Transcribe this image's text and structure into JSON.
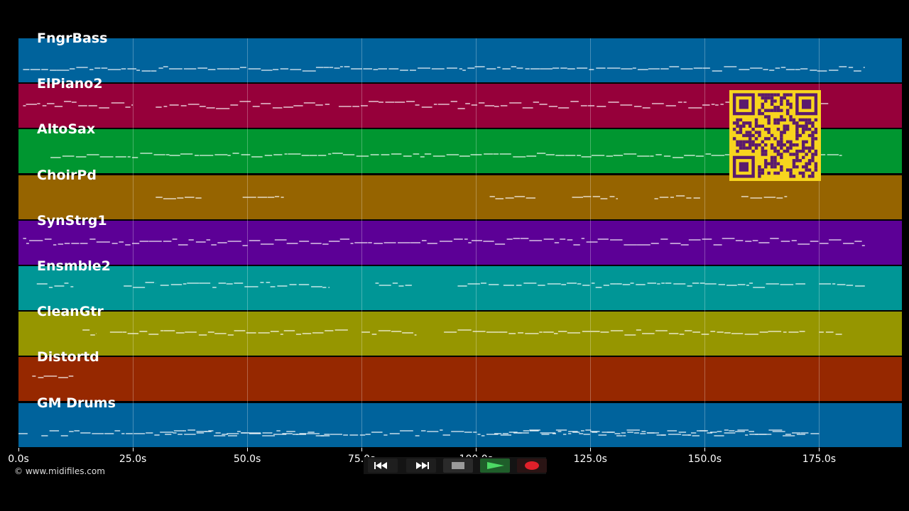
{
  "tracks": [
    {
      "name": "FngrBass",
      "color": "#00639c"
    },
    {
      "name": "ElPiano2",
      "color": "#96003a"
    },
    {
      "name": "AltoSax",
      "color": "#009630"
    },
    {
      "name": "ChoirPd",
      "color": "#966400"
    },
    {
      "name": "SynStrg1",
      "color": "#5c0096"
    },
    {
      "name": "Ensmble2",
      "color": "#009696"
    },
    {
      "name": "CleanGtr",
      "color": "#969600"
    },
    {
      "name": "Distortd",
      "color": "#962800"
    },
    {
      "name": "GM Drums",
      "color": "#00639c"
    }
  ],
  "timeline": {
    "ticks": [
      "0.0s",
      "25.0s",
      "50.0s",
      "75.0s",
      "100.0s",
      "125.0s",
      "150.0s",
      "175.0s"
    ],
    "tick_seconds": [
      0,
      25,
      50,
      75,
      100,
      125,
      150,
      175
    ],
    "max_seconds": 193.1
  },
  "copyright": "© www.midifiles.com",
  "transport": {
    "rewind": "rewind-icon",
    "fast_forward": "fast-forward-icon",
    "stop": "stop-icon",
    "play": "play-icon",
    "record": "record-icon"
  },
  "colors": {
    "background": "#000000",
    "qr_background": "#f7d51e",
    "qr_modules": "#5a1a6e",
    "notes": "#ffffff"
  }
}
